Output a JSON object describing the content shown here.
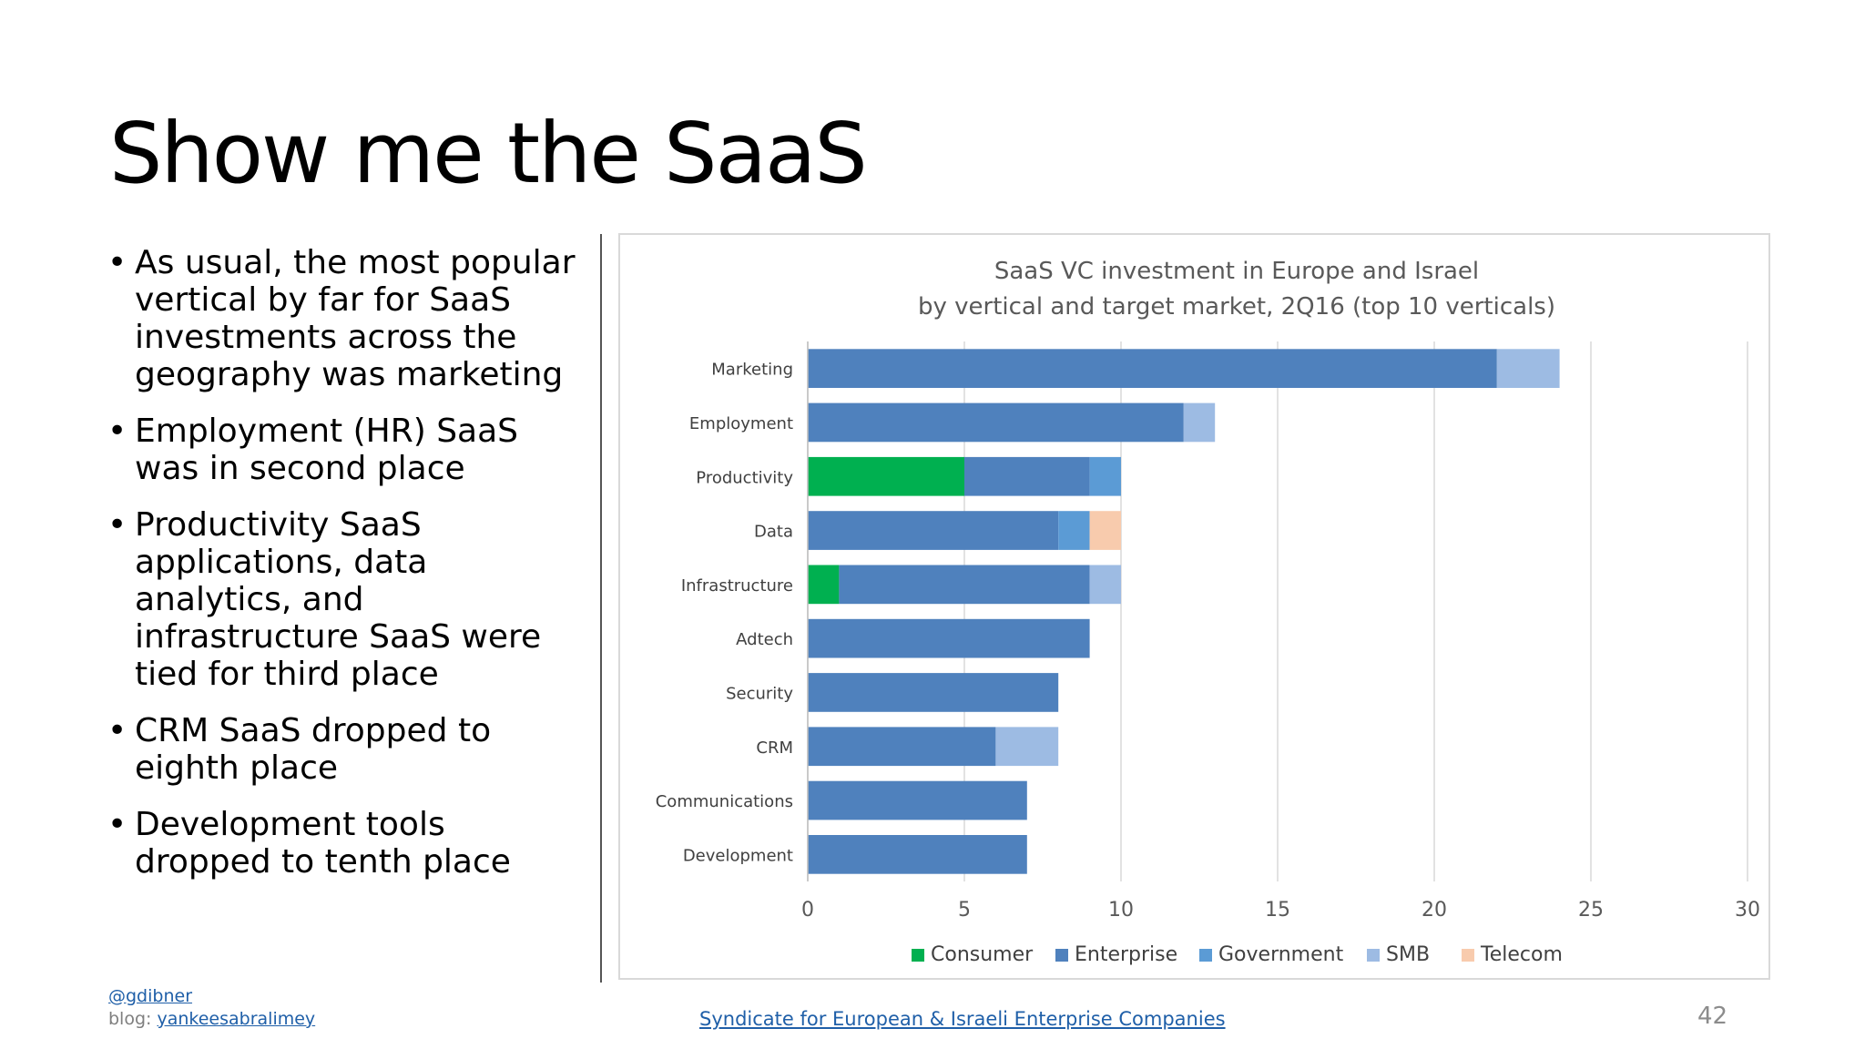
{
  "slide": {
    "title": "Show me the SaaS",
    "bullets": [
      "As usual, the most popular vertical by far for SaaS investments  across the geography was marketing",
      "Employment (HR) SaaS was in second place",
      "Productivity SaaS applications, data analytics, and infrastructure SaaS were tied for third place",
      "CRM SaaS dropped to eighth place",
      "Development tools dropped to tenth place"
    ],
    "page_number": "42"
  },
  "footer": {
    "handle": "@gdibner",
    "blog_label": "blog: ",
    "blog_link": "yankeesabralimey",
    "source_link": "Syndicate for European & Israeli Enterprise Companies"
  },
  "colors": {
    "Consumer": "#00b050",
    "Enterprise": "#4f81bd",
    "Government": "#5b9bd5",
    "SMB": "#9dbbe3",
    "Telecom": "#f8cbad"
  },
  "chart_data": {
    "type": "bar",
    "orientation": "horizontal",
    "stacked": true,
    "title": "SaaS VC investment in Europe and Israel",
    "subtitle": "by vertical and target market, 2Q16 (top 10 verticals)",
    "categories": [
      "Marketing",
      "Employment",
      "Productivity",
      "Data",
      "Infrastructure",
      "Adtech",
      "Security",
      "CRM",
      "Communications",
      "Development"
    ],
    "series": [
      {
        "name": "Consumer",
        "values": [
          0,
          0,
          5,
          0,
          1,
          0,
          0,
          0,
          0,
          0
        ]
      },
      {
        "name": "Enterprise",
        "values": [
          22,
          12,
          4,
          8,
          8,
          9,
          8,
          6,
          7,
          7
        ]
      },
      {
        "name": "Government",
        "values": [
          0,
          0,
          1,
          1,
          0,
          0,
          0,
          0,
          0,
          0
        ]
      },
      {
        "name": "SMB",
        "values": [
          2,
          1,
          0,
          0,
          1,
          0,
          0,
          2,
          0,
          0
        ]
      },
      {
        "name": "Telecom",
        "values": [
          0,
          0,
          0,
          1,
          0,
          0,
          0,
          0,
          0,
          0
        ]
      }
    ],
    "xlim": [
      0,
      30
    ],
    "xticks": [
      "0",
      "5",
      "10",
      "15",
      "20",
      "25",
      "30"
    ],
    "grid": true,
    "legend_position": "bottom"
  }
}
